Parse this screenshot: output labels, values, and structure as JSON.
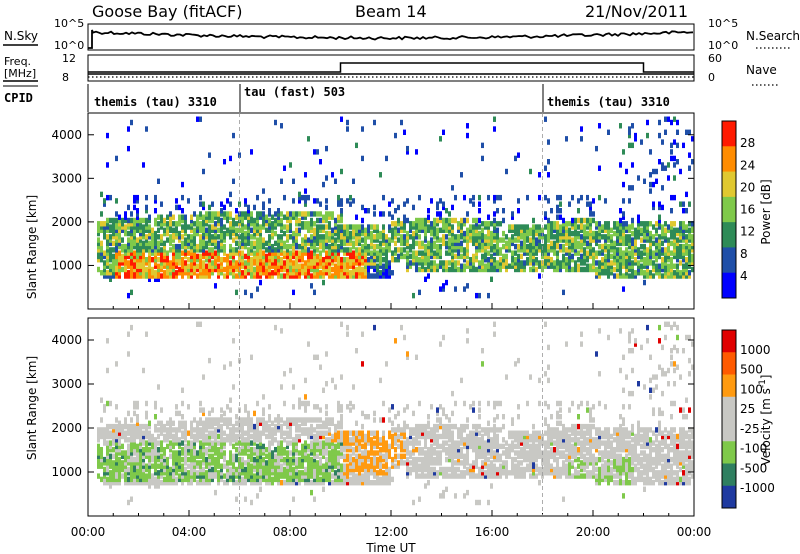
{
  "header": {
    "station": "Goose Bay (fitACF)",
    "beam": "Beam 14",
    "date": "21/Nov/2011"
  },
  "params_panel": {
    "nsky_label": "N.Sky",
    "nsearch_label": "N.Search",
    "noise_ticks": [
      "10^5",
      "10^0"
    ],
    "freq_label_1": "Freq.",
    "freq_label_2": "[MHz]",
    "freq_ticks": [
      "12",
      "8"
    ],
    "nave_label": "Nave",
    "nave_ticks": [
      "60",
      "0"
    ],
    "cpid_label": "CPID",
    "cpid_segments": [
      {
        "label": "themis (tau) 3310",
        "start_h": 0.0,
        "end_h": 6.0
      },
      {
        "label": "tau (fast) 503",
        "start_h": 6.0,
        "end_h": 18.0
      },
      {
        "label": "themis (tau) 3310",
        "start_h": 18.0,
        "end_h": 24.0
      }
    ],
    "nave_step": {
      "low_until_h": 10.0,
      "high_until_h": 22.0,
      "low_value": 15,
      "high_value": 30
    }
  },
  "chart_data": [
    {
      "type": "heatmap",
      "name": "power",
      "ylabel": "Slant Range [km]",
      "yticks": [
        1000,
        2000,
        3000,
        4000
      ],
      "ylim": [
        0,
        4500
      ],
      "xlim": [
        0,
        24
      ],
      "colorbar_label": "Power [dB]",
      "colorbar_ticks": [
        "28",
        "24",
        "20",
        "16",
        "12",
        "8",
        "4"
      ],
      "colors": [
        "#0000ff",
        "#1f4fa8",
        "#2e8b57",
        "#7fc94a",
        "#e0c830",
        "#ff8c00",
        "#ff1a00"
      ],
      "levels": [
        0,
        4,
        8,
        12,
        16,
        20,
        24,
        32
      ]
    },
    {
      "type": "heatmap",
      "name": "velocity",
      "xlabel": "Time UT",
      "ylabel": "Slant Range [km]",
      "yticks": [
        1000,
        2000,
        3000,
        4000
      ],
      "ylim": [
        0,
        4500
      ],
      "xlim": [
        0,
        24
      ],
      "xticks": [
        "00:00",
        "04:00",
        "08:00",
        "12:00",
        "16:00",
        "20:00",
        "00:00"
      ],
      "colorbar_label": "Velocity [m s^-1]",
      "colorbar_ticks": [
        "1000",
        "500",
        "100",
        "25",
        "-25",
        "-100",
        "-500",
        "-1000"
      ],
      "colors": [
        "#1f3aa0",
        "#2f7f60",
        "#7fc94a",
        "#c8c8c4",
        "#c8c8c4",
        "#ff9a10",
        "#ff5a00",
        "#e00000"
      ]
    }
  ]
}
